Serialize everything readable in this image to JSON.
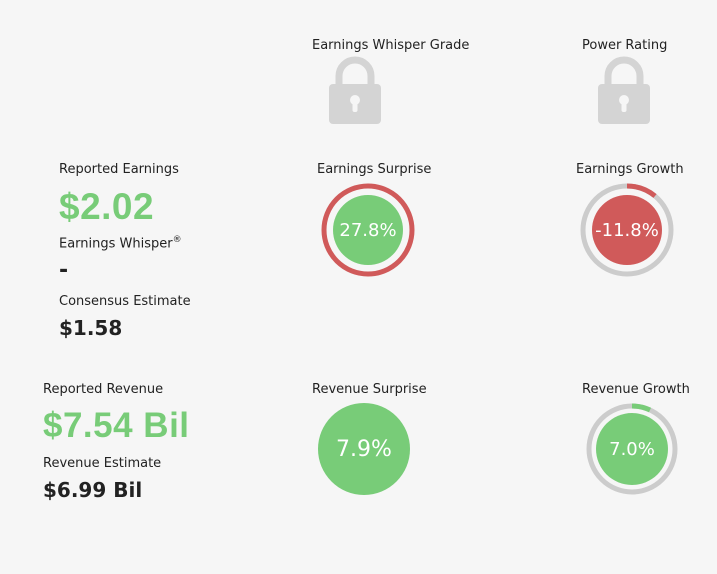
{
  "grades": {
    "whisper_grade_label": "Earnings Whisper Grade",
    "power_rating_label": "Power Rating",
    "lock_icon": "lock-icon"
  },
  "earnings": {
    "reported_label": "Reported Earnings",
    "reported_value": "$2.02",
    "whisper_label": "Earnings Whisper",
    "whisper_mark": "®",
    "whisper_value": "-",
    "consensus_label": "Consensus Estimate",
    "consensus_value": "$1.58",
    "surprise_label": "Earnings Surprise",
    "surprise_value": "27.8%",
    "growth_label": "Earnings Growth",
    "growth_value": "-11.8%"
  },
  "revenue": {
    "reported_label": "Reported Revenue",
    "reported_value": "$7.54 Bil",
    "estimate_label": "Revenue Estimate",
    "estimate_value": "$6.99 Bil",
    "surprise_label": "Revenue Surprise",
    "surprise_value": "7.9%",
    "growth_label": "Revenue Growth",
    "growth_value": "7.0%"
  },
  "colors": {
    "green": "#78cc78",
    "red": "#d05a5a",
    "ring_gray": "#cccccc",
    "lock_gray": "#d4d4d4"
  }
}
